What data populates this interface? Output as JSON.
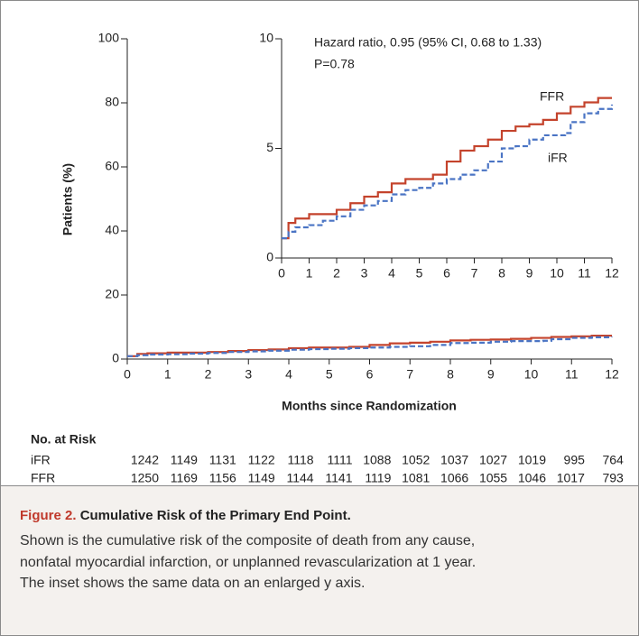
{
  "chart_data": {
    "type": "step",
    "xlabel": "Months since Randomization",
    "ylabel": "Patients (%)",
    "xlim": [
      0,
      12
    ],
    "xticks": [
      0,
      1,
      2,
      3,
      4,
      5,
      6,
      7,
      8,
      9,
      10,
      11,
      12
    ],
    "ylim": [
      0,
      100
    ],
    "yticks": [
      0,
      20,
      40,
      60,
      80,
      100
    ],
    "series": [
      {
        "name": "FFR",
        "color": "#c4432c",
        "dashed": false,
        "x": [
          0,
          0.25,
          0.5,
          1,
          1.5,
          2,
          2.5,
          3,
          3.5,
          4,
          4.5,
          5,
          5.5,
          6,
          6.5,
          7,
          7.5,
          8,
          8.5,
          9,
          9.5,
          10,
          10.5,
          11,
          11.5,
          12
        ],
        "values": [
          0.9,
          1.6,
          1.8,
          2.0,
          2.0,
          2.2,
          2.5,
          2.8,
          3.0,
          3.4,
          3.6,
          3.6,
          3.8,
          4.4,
          4.9,
          5.1,
          5.4,
          5.8,
          6.0,
          6.1,
          6.3,
          6.6,
          6.9,
          7.1,
          7.3,
          7.3
        ]
      },
      {
        "name": "iFR",
        "color": "#4a74c4",
        "dashed": true,
        "x": [
          0,
          0.25,
          0.5,
          1,
          1.5,
          2,
          2.5,
          3,
          3.5,
          4,
          4.5,
          5,
          5.5,
          6,
          6.5,
          7,
          7.5,
          8,
          8.5,
          9,
          9.5,
          10,
          10.3,
          10.5,
          11,
          11.5,
          12
        ],
        "values": [
          0.9,
          1.2,
          1.4,
          1.5,
          1.7,
          1.9,
          2.2,
          2.4,
          2.6,
          2.9,
          3.1,
          3.2,
          3.4,
          3.6,
          3.8,
          4.0,
          4.4,
          5.0,
          5.1,
          5.4,
          5.6,
          5.6,
          5.7,
          6.2,
          6.6,
          6.8,
          7.0
        ]
      }
    ],
    "inset": {
      "xlim": [
        0,
        12
      ],
      "xticks": [
        0,
        1,
        2,
        3,
        4,
        5,
        6,
        7,
        8,
        9,
        10,
        11,
        12
      ],
      "ylim": [
        0,
        10
      ],
      "yticks": [
        0,
        5,
        10
      ]
    },
    "annotations": [
      "Hazard ratio, 0.95 (95% CI, 0.68 to 1.33)",
      "P=0.78"
    ],
    "at_risk": {
      "title": "No. at Risk",
      "rows": [
        [
          1242,
          1149,
          1131,
          1122,
          1118,
          1111,
          1088,
          1052,
          1037,
          1027,
          1019,
          995,
          764
        ],
        [
          1250,
          1169,
          1156,
          1149,
          1144,
          1141,
          1119,
          1081,
          1066,
          1055,
          1046,
          1017,
          793
        ]
      ]
    }
  },
  "caption": {
    "label": "Figure 2.",
    "title": "Cumulative Risk of the Primary End Point.",
    "lines": [
      "Shown is the cumulative risk of the composite of death from any cause,",
      "nonfatal myocardial infarction, or unplanned revascularization at 1 year.",
      "The inset shows the same data on an enlarged y axis."
    ]
  }
}
